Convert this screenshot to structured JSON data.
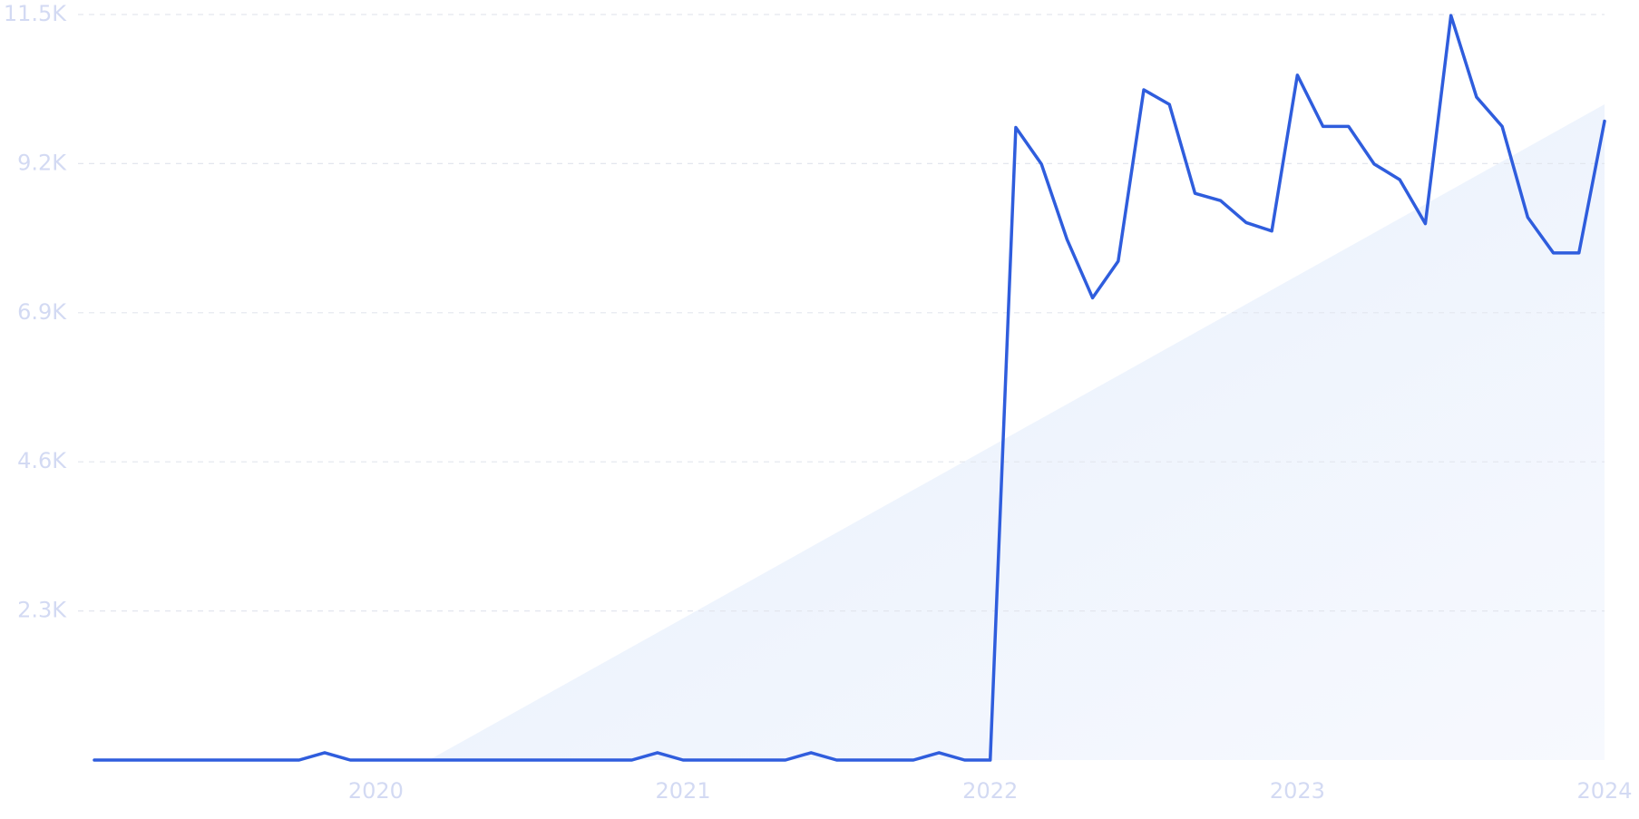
{
  "chart_data": {
    "type": "line",
    "categories": [
      null,
      null,
      null,
      null,
      null,
      null,
      null,
      null,
      null,
      null,
      null,
      "2020",
      null,
      null,
      null,
      null,
      null,
      null,
      null,
      null,
      null,
      null,
      null,
      "2021",
      null,
      null,
      null,
      null,
      null,
      null,
      null,
      null,
      null,
      null,
      null,
      "2022",
      null,
      null,
      null,
      null,
      null,
      null,
      null,
      null,
      null,
      null,
      null,
      "2023",
      null,
      null,
      null,
      null,
      null,
      null,
      null,
      null,
      null,
      null,
      null,
      "2024"
    ],
    "values": [
      0,
      0,
      0,
      0,
      0,
      0,
      0,
      0,
      0,
      113,
      0,
      0,
      0,
      0,
      0,
      0,
      0,
      0,
      0,
      0,
      0,
      0,
      113,
      0,
      0,
      0,
      0,
      0,
      113,
      0,
      0,
      0,
      0,
      113,
      0,
      0,
      9758,
      9194,
      8032,
      7129,
      7694,
      10339,
      10113,
      8742,
      8629,
      8290,
      8161,
      10565,
      9774,
      9774,
      9194,
      8952,
      8274,
      11484,
      10226,
      9774,
      8371,
      7823,
      7823,
      9855
    ],
    "color": "#2f5ddd",
    "ylim": [
      0,
      11500
    ],
    "yticks": [
      {
        "value": 2300,
        "label": "2.3K"
      },
      {
        "value": 4600,
        "label": "4.6K"
      },
      {
        "value": 6900,
        "label": "6.9K"
      },
      {
        "value": 9200,
        "label": "9.2K"
      },
      {
        "value": 11500,
        "label": "11.5K"
      }
    ],
    "grid": true
  }
}
